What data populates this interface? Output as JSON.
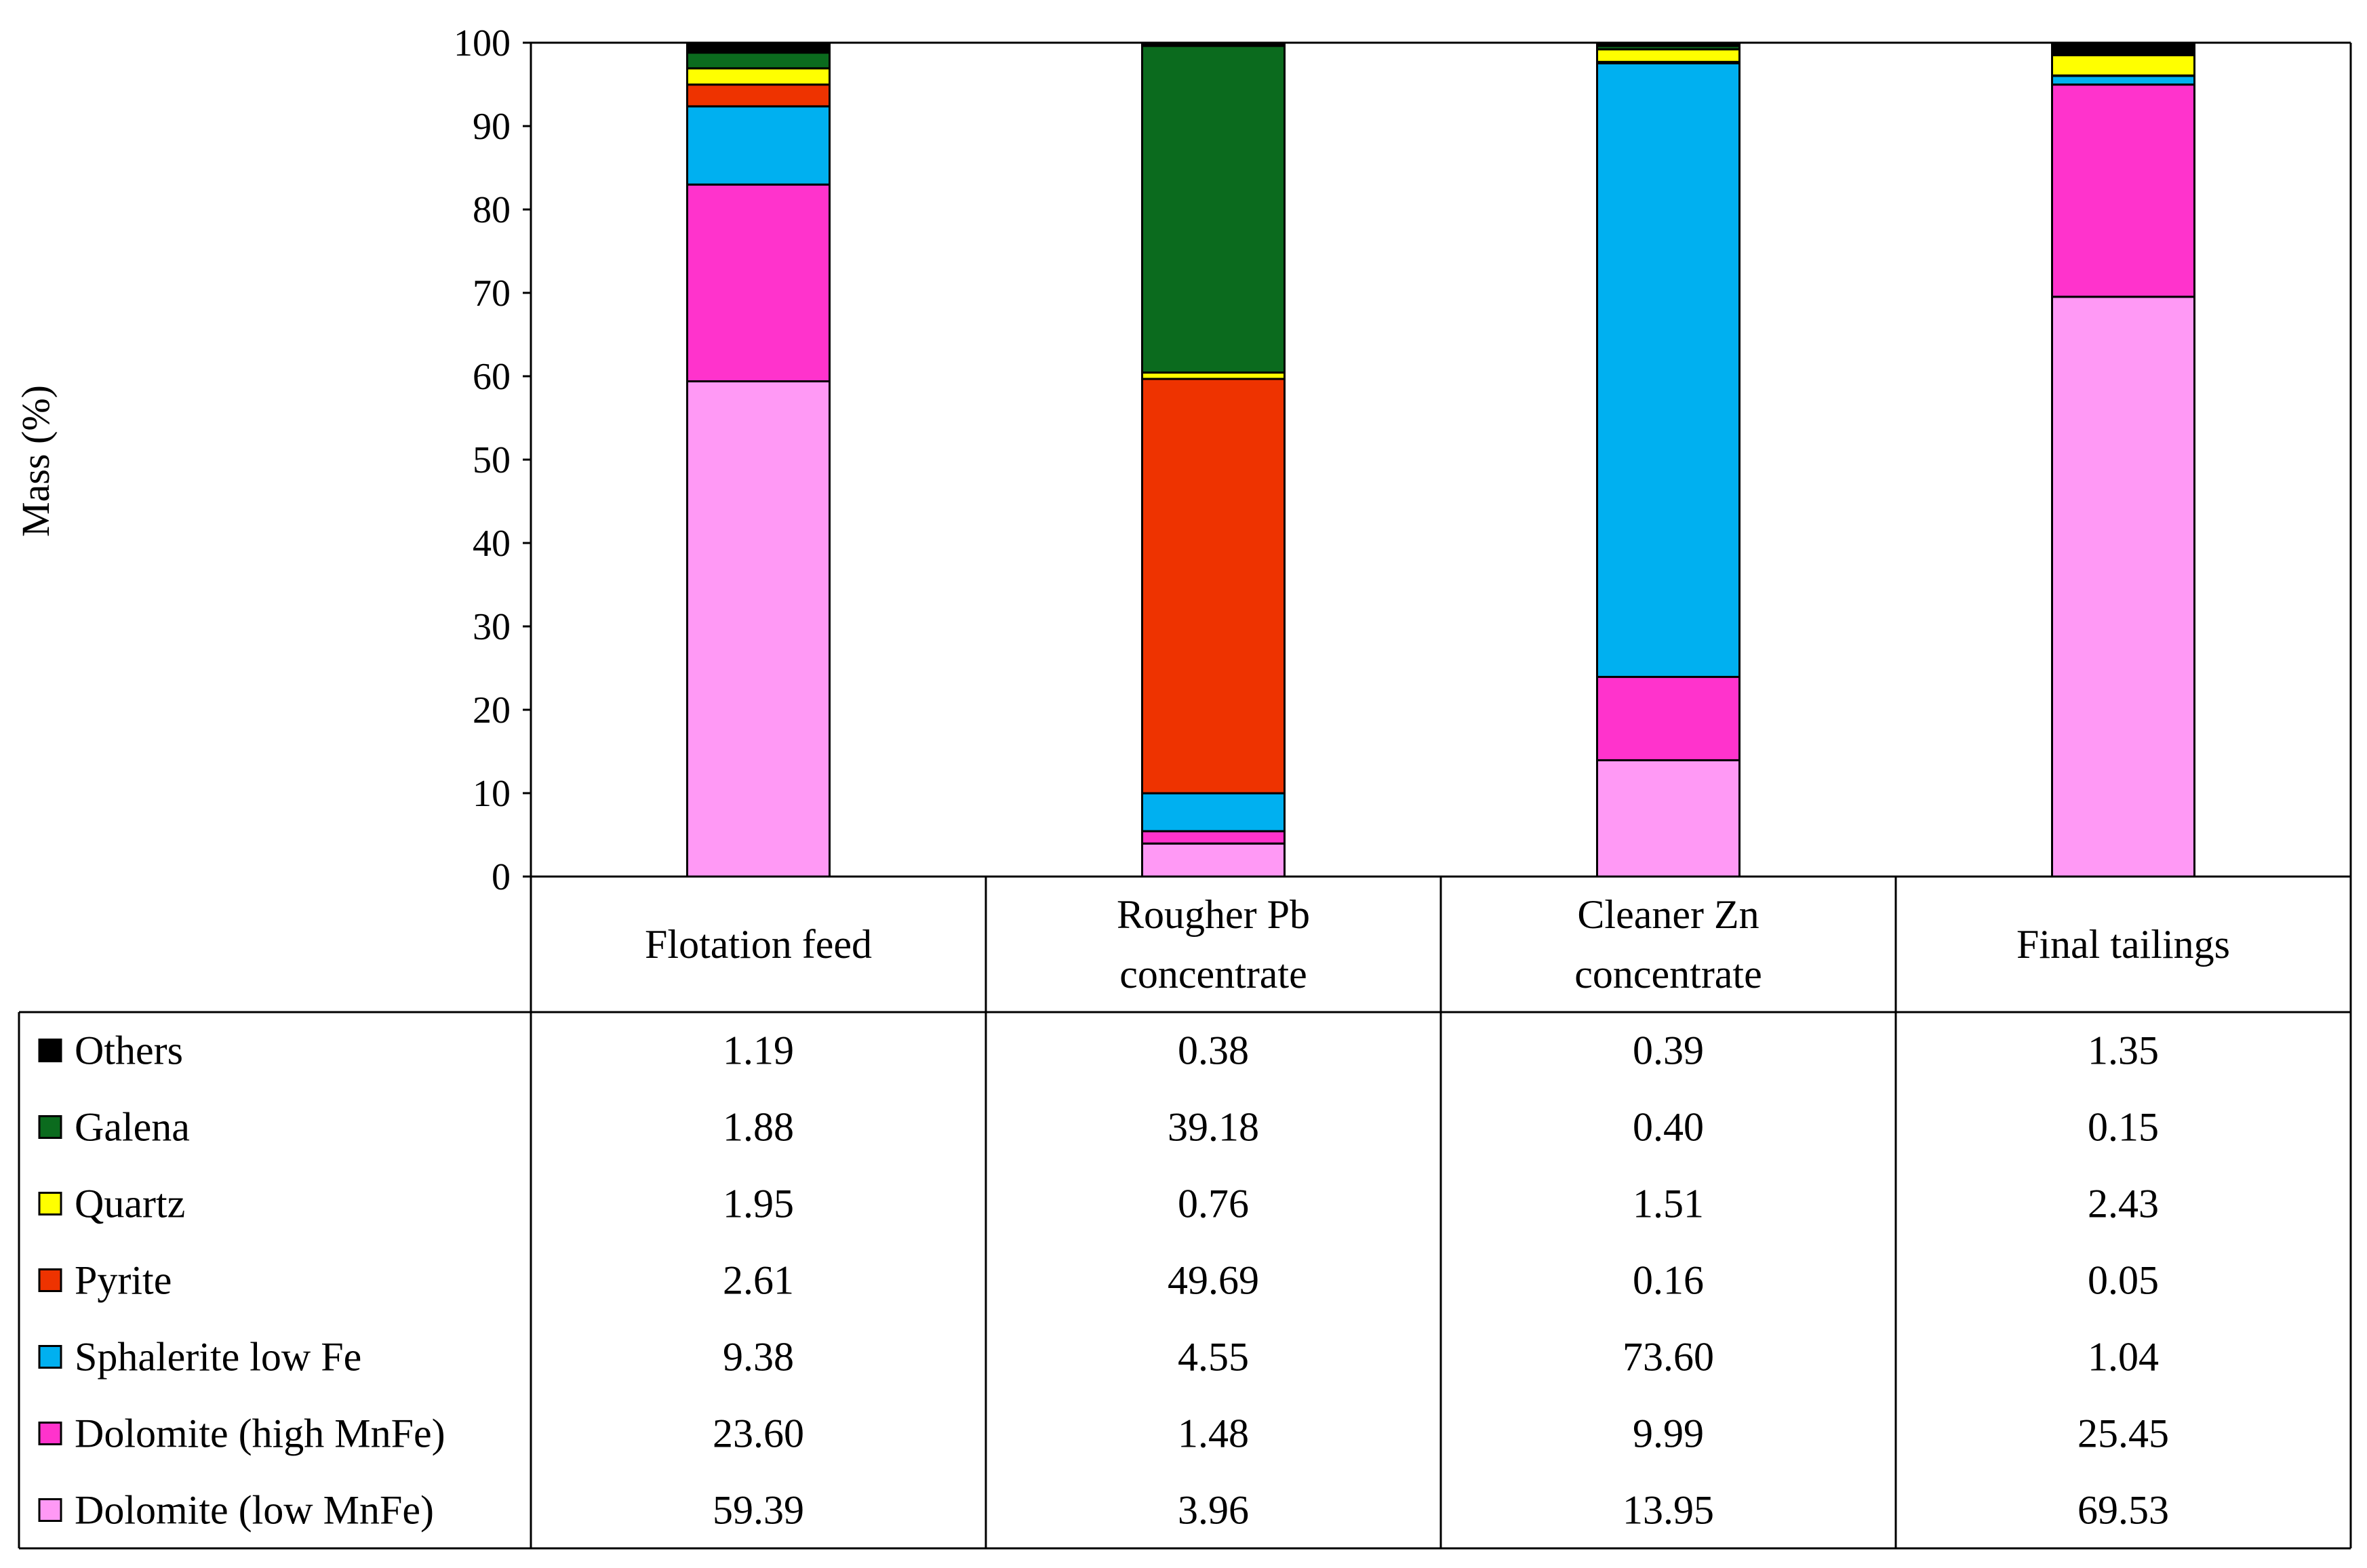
{
  "chart_data": {
    "type": "bar",
    "stacked": true,
    "title": "",
    "xlabel": "",
    "ylabel": "Mass (%)",
    "ylim": [
      0,
      100
    ],
    "yticks": [
      0,
      10,
      20,
      30,
      40,
      50,
      60,
      70,
      80,
      90,
      100
    ],
    "grid": false,
    "legend_position": "table-left",
    "categories": [
      [
        "Flotation feed"
      ],
      [
        "Rougher Pb",
        "concentrate"
      ],
      [
        "Cleaner Zn",
        "concentrate"
      ],
      [
        "Final tailings"
      ]
    ],
    "series": [
      {
        "name": "Dolomite (low MnFe)",
        "color": "#ff99f5",
        "values": [
          59.39,
          3.96,
          13.95,
          69.53
        ],
        "labels": [
          "59.39",
          "3.96",
          "13.95",
          "69.53"
        ]
      },
      {
        "name": "Dolomite (high MnFe)",
        "color": "#ff33cc",
        "values": [
          23.6,
          1.48,
          9.99,
          25.45
        ],
        "labels": [
          "23.60",
          "1.48",
          "9.99",
          "25.45"
        ]
      },
      {
        "name": "Sphalerite  low Fe",
        "color": "#00b0f0",
        "values": [
          9.38,
          4.55,
          73.6,
          1.04
        ],
        "labels": [
          "9.38",
          "4.55",
          "73.60",
          "1.04"
        ]
      },
      {
        "name": "Pyrite",
        "color": "#ee3300",
        "values": [
          2.61,
          49.69,
          0.16,
          0.05
        ],
        "labels": [
          "2.61",
          "49.69",
          "0.16",
          "0.05"
        ]
      },
      {
        "name": "Quartz",
        "color": "#ffff00",
        "values": [
          1.95,
          0.76,
          1.51,
          2.43
        ],
        "labels": [
          "1.95",
          "0.76",
          "1.51",
          "2.43"
        ]
      },
      {
        "name": "Galena",
        "color": "#0b6b1e",
        "values": [
          1.88,
          39.18,
          0.4,
          0.15
        ],
        "labels": [
          "1.88",
          "39.18",
          "0.40",
          "0.15"
        ]
      },
      {
        "name": "Others",
        "color": "#000000",
        "values": [
          1.19,
          0.38,
          0.39,
          1.35
        ],
        "labels": [
          "1.19",
          "0.38",
          "0.39",
          "1.35"
        ]
      }
    ]
  }
}
